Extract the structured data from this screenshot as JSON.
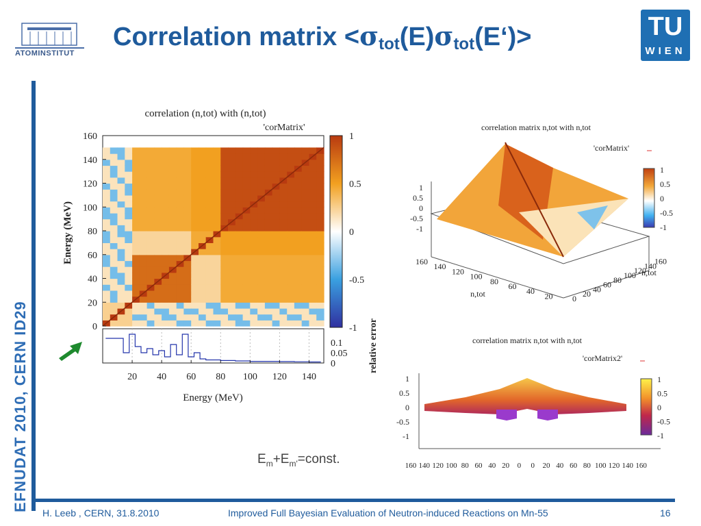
{
  "header": {
    "institute_logo_text": "ATOMINSTITUT",
    "title_prefix": "Correlation matrix <",
    "sigma": "σ",
    "sub_tot": "tot",
    "paren_e": "(E)",
    "paren_e_prime": "(E‘)>",
    "tu_logo_top": "TU",
    "tu_logo_bottom": "WIEN"
  },
  "sidebar": {
    "vertical_text": "EFNUDAT 2010, CERN     ID29"
  },
  "footer": {
    "author": "H. Leeb , CERN, 31.8.2010",
    "talk_title": "Improved Full Bayesian Evaluation of Neutron-induced Reactions on Mn-55",
    "page": "16"
  },
  "annotation": {
    "formula_E1": "E",
    "sub_m": "m",
    "plus": "+E",
    "sub_mprime": "m'",
    "tail": "=const."
  },
  "colors": {
    "accent": "#1f5b9c",
    "arrow": "#1e8a2e",
    "positive": "#d24a1a",
    "negative": "#2c8fd6"
  },
  "chart_data": [
    {
      "type": "heatmap",
      "title": "correlation (n,tot) with (n,tot)",
      "legend": "'corMatrix'",
      "xlabel": "Energy (MeV)",
      "ylabel": "Energy (MeV)",
      "x_ticks": [
        "20",
        "40",
        "60",
        "80",
        "100",
        "120",
        "140"
      ],
      "y_ticks": [
        "0",
        "20",
        "40",
        "60",
        "80",
        "100",
        "120",
        "140",
        "160"
      ],
      "xlim": [
        0,
        150
      ],
      "ylim": [
        0,
        160
      ],
      "colorbar_ticks": [
        "1",
        "0.5",
        "0",
        "-0.5",
        "-1"
      ],
      "colorbar_range": [
        -1,
        1
      ],
      "block_correlations": [
        {
          "from": 0,
          "to": 22,
          "value": 0.25
        },
        {
          "from": 22,
          "to": 62,
          "value": 0.75
        },
        {
          "from": 62,
          "to": 80,
          "value": 0.45
        },
        {
          "from": 80,
          "to": 150,
          "value": 0.9
        }
      ],
      "subplot": {
        "ylabel": "relative error",
        "y_ticks": [
          "0.1",
          "0.05",
          "0"
        ],
        "relative_error": [
          [
            2,
            0.12
          ],
          [
            8,
            0.12
          ],
          [
            14,
            0.05
          ],
          [
            18,
            0.14
          ],
          [
            22,
            0.08
          ],
          [
            26,
            0.05
          ],
          [
            30,
            0.07
          ],
          [
            34,
            0.04
          ],
          [
            38,
            0.06
          ],
          [
            42,
            0.03
          ],
          [
            46,
            0.09
          ],
          [
            50,
            0.04
          ],
          [
            54,
            0.14
          ],
          [
            58,
            0.03
          ],
          [
            62,
            0.05
          ],
          [
            66,
            0.02
          ],
          [
            70,
            0.015
          ],
          [
            80,
            0.012
          ],
          [
            90,
            0.01
          ],
          [
            100,
            0.008
          ],
          [
            110,
            0.008
          ],
          [
            120,
            0.007
          ],
          [
            130,
            0.006
          ],
          [
            140,
            0.005
          ],
          [
            148,
            0.005
          ]
        ]
      }
    },
    {
      "type": "surface",
      "title": "correlation matrix n,tot with n,tot",
      "legend": "'corMatrix'",
      "xlabel": "n,tot",
      "ylabel": "n,tot",
      "x_ticks": [
        "160",
        "140",
        "120",
        "100",
        "80",
        "60",
        "40",
        "20"
      ],
      "y_ticks": [
        "0",
        "20",
        "40",
        "60",
        "80",
        "100",
        "120",
        "140",
        "160"
      ],
      "z_ticks": [
        "1",
        "0.5",
        "0",
        "-0.5",
        "-1"
      ],
      "colorbar_ticks": [
        "1",
        "0.5",
        "0",
        "-0.5",
        "-1"
      ]
    },
    {
      "type": "surface",
      "title": "correlation matrix n,tot with n,tot",
      "legend": "'corMatrix2'",
      "x_ticks": [
        "160",
        "140",
        "120",
        "100",
        "80",
        "60",
        "40",
        "20",
        "0",
        "0",
        "20",
        "40",
        "60",
        "80",
        "100",
        "120",
        "140",
        "160"
      ],
      "z_ticks": [
        "1",
        "0.5",
        "0",
        "-0.5",
        "-1"
      ],
      "colorbar_ticks": [
        "1",
        "0.5",
        "0",
        "-0.5",
        "-1"
      ]
    }
  ]
}
